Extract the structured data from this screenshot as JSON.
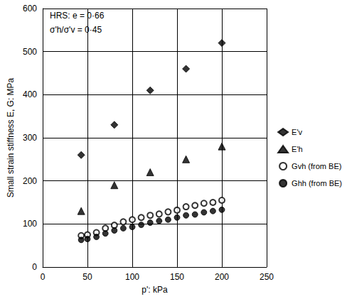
{
  "chart_data": {
    "type": "scatter",
    "x_label": "p': kPa",
    "y_label": "Small strain stiffness E, G: MPa",
    "annotations": [
      "HRS: e = 0·66",
      "σ'h/σ'v = 0·45"
    ],
    "xlim": [
      0,
      250
    ],
    "xticks": [
      0,
      50,
      100,
      150,
      200,
      250
    ],
    "ylim": [
      0,
      600
    ],
    "yticks": [
      0,
      100,
      200,
      300,
      400,
      500,
      600
    ],
    "grid": true,
    "legend": "right",
    "series": [
      {
        "name": "E'v",
        "color": "#000000",
        "marker": "diamond",
        "x": [
          43,
          80,
          120,
          160,
          200
        ],
        "values": [
          260,
          330,
          410,
          460,
          520
        ]
      },
      {
        "name": "E'h",
        "color": "#000000",
        "marker": "triangle",
        "x": [
          43,
          80,
          120,
          160,
          200
        ],
        "values": [
          130,
          190,
          220,
          250,
          280
        ]
      },
      {
        "name": "Gvh (from BE)",
        "color": "#000000",
        "marker": "open_circle",
        "x": [
          43,
          50,
          60,
          70,
          80,
          90,
          100,
          110,
          120,
          130,
          140,
          150,
          160,
          170,
          180,
          190,
          200
        ],
        "values": [
          73,
          75,
          80,
          90,
          97,
          105,
          110,
          115,
          120,
          123,
          128,
          132,
          140,
          143,
          148,
          150,
          155
        ]
      },
      {
        "name": "Ghh (from BE)",
        "color": "#000000",
        "marker": "circle",
        "x": [
          43,
          50,
          60,
          70,
          80,
          90,
          100,
          110,
          120,
          130,
          140,
          150,
          160,
          170,
          180,
          190,
          200
        ],
        "values": [
          63,
          65,
          70,
          78,
          85,
          90,
          93,
          98,
          103,
          107,
          110,
          115,
          120,
          122,
          127,
          130,
          133
        ]
      }
    ]
  }
}
